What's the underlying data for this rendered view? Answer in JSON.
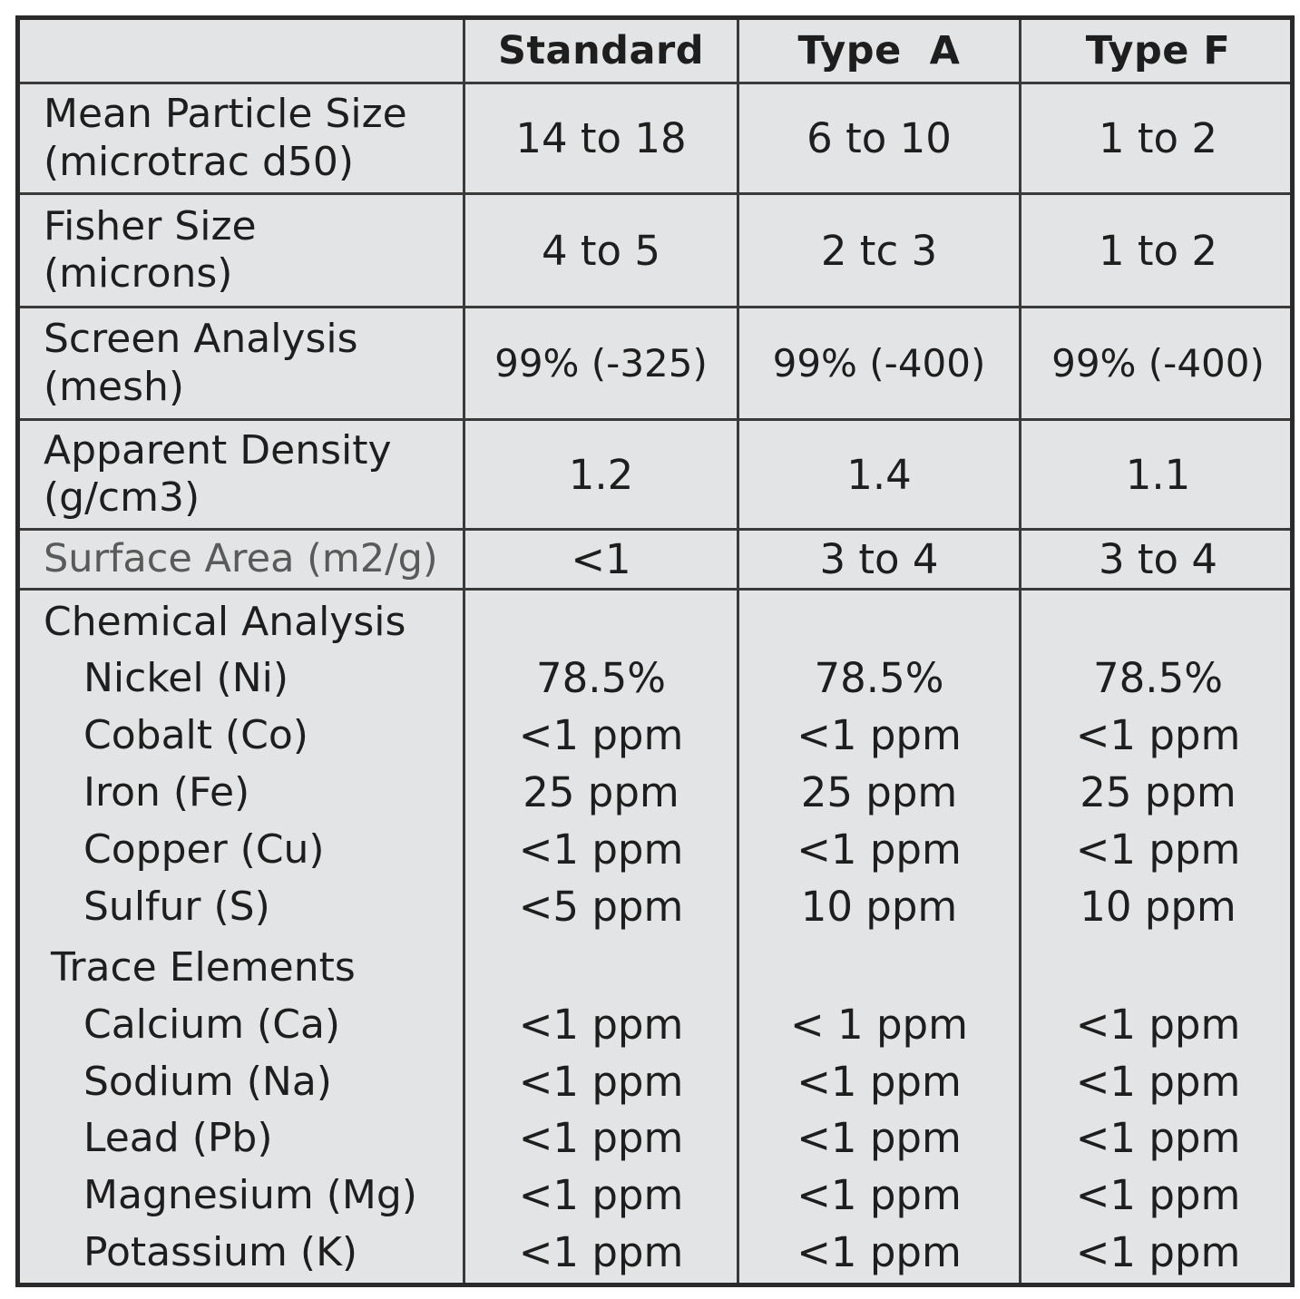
{
  "columns": [
    "",
    "Standard",
    "Type  A",
    "Type F"
  ],
  "property_rows": [
    {
      "label_lines": [
        "Mean Particle Size",
        "(microtrac d50)"
      ],
      "values": [
        "14 to 18",
        "6 to 10",
        "1 to 2"
      ]
    },
    {
      "label_lines": [
        "Fisher Size",
        "(microns)"
      ],
      "values": [
        "4 to 5",
        "2 tc 3",
        "1 to 2"
      ]
    },
    {
      "label_lines": [
        "Screen Analysis",
        "(mesh)"
      ],
      "values": [
        "99% (-325)",
        "99% (-400)",
        "99% (-400)"
      ]
    },
    {
      "label_lines": [
        "Apparent Density",
        "(g/cm3)"
      ],
      "values": [
        "1.2",
        "1.4",
        "1.1"
      ]
    },
    {
      "label_lines": [
        "Surface Area (m2/g)"
      ],
      "values": [
        "<1",
        "3 to 4",
        "3 to 4"
      ]
    }
  ],
  "chemical_analysis": {
    "heading": "Chemical Analysis",
    "items": [
      {
        "label": "Nickel (Ni)",
        "values": [
          "78.5%",
          "78.5%",
          "78.5%"
        ]
      },
      {
        "label": "Cobalt (Co)",
        "values": [
          "<1 ppm",
          "<1 ppm",
          "<1 ppm"
        ]
      },
      {
        "label": "Iron (Fe)",
        "values": [
          "25 ppm",
          "25 ppm",
          "25 ppm"
        ]
      },
      {
        "label": "Copper (Cu)",
        "values": [
          "<1 ppm",
          "<1 ppm",
          "<1 ppm"
        ]
      },
      {
        "label": "Sulfur (S)",
        "values": [
          "<5 ppm",
          "10 ppm",
          "10 ppm"
        ]
      }
    ]
  },
  "trace_elements": {
    "heading": "Trace Elements",
    "items": [
      {
        "label": "Calcium (Ca)",
        "values": [
          "<1 ppm",
          "< 1 ppm",
          "<1 ppm"
        ]
      },
      {
        "label": "Sodium (Na)",
        "values": [
          "<1 ppm",
          "<1 ppm",
          "<1 ppm"
        ]
      },
      {
        "label": "Lead (Pb)",
        "values": [
          "<1 ppm",
          "<1 ppm",
          "<1 ppm"
        ]
      },
      {
        "label": "Magnesium (Mg)",
        "values": [
          "<1 ppm",
          "<1 ppm",
          "<1 ppm"
        ]
      },
      {
        "label": "Potassium (K)",
        "values": [
          "<1 ppm",
          "<1 ppm",
          "<1 ppm"
        ]
      }
    ]
  },
  "colors": {
    "table_background": "#e3e4e5",
    "border": "#2a2a2a",
    "text": "#1e1e1e",
    "muted_label": "#5a5a5a"
  }
}
